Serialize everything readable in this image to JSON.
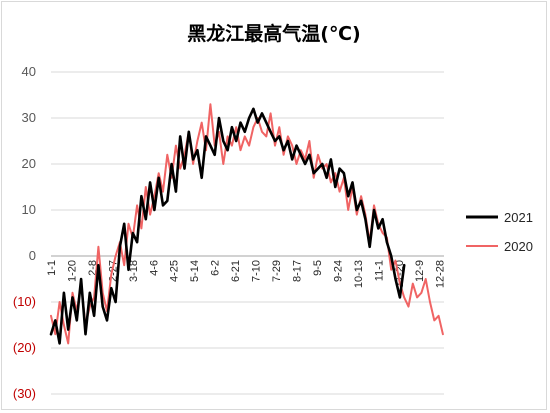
{
  "chart_data": {
    "type": "line",
    "title": "黑龙江最高气温(℃)",
    "xlabel": "",
    "ylabel": "",
    "ylim": [
      -30,
      40
    ],
    "yticks": [
      40,
      30,
      20,
      10,
      0,
      -10,
      -20,
      -30
    ],
    "ytick_labels": [
      "40",
      "30",
      "20",
      "10",
      "0",
      "(10)",
      "(20)",
      "(30)"
    ],
    "xtick_labels": [
      "1-1",
      "1-20",
      "2-8",
      "2-27",
      "3-18",
      "4-6",
      "4-25",
      "5-14",
      "6-2",
      "6-21",
      "7-10",
      "7-29",
      "8-17",
      "9-5",
      "9-24",
      "10-13",
      "11-1",
      "11-20",
      "12-9",
      "12-28"
    ],
    "xtick_days": [
      1,
      20,
      39,
      58,
      77,
      96,
      115,
      134,
      153,
      172,
      191,
      210,
      229,
      248,
      267,
      286,
      305,
      324,
      343,
      362
    ],
    "x_domain": [
      1,
      366
    ],
    "grid": true,
    "legend_position": "right",
    "colors": {
      "2021": "#000000",
      "2020": "#f06464",
      "grid": "#d9d9d9",
      "negative_tick": "#c00000"
    },
    "series": [
      {
        "name": "2021",
        "x": [
          1,
          5,
          9,
          13,
          17,
          21,
          25,
          29,
          33,
          37,
          41,
          45,
          49,
          53,
          57,
          61,
          65,
          69,
          73,
          77,
          81,
          85,
          89,
          93,
          97,
          101,
          105,
          109,
          113,
          117,
          121,
          125,
          129,
          133,
          137,
          141,
          145,
          149,
          153,
          157,
          161,
          165,
          169,
          173,
          177,
          181,
          185,
          189,
          193,
          197,
          201,
          205,
          209,
          213,
          217,
          221,
          225,
          229,
          233,
          237,
          241,
          245,
          249,
          253,
          257,
          261,
          265,
          269,
          273,
          277,
          281,
          285,
          289,
          293,
          297,
          301,
          305,
          309,
          313,
          317,
          321,
          325,
          329
        ],
        "y": [
          -17,
          -14,
          -19,
          -8,
          -16,
          -9,
          -14,
          -5,
          -17,
          -8,
          -13,
          -2,
          -11,
          -14,
          -7,
          -10,
          2,
          7,
          -3,
          5,
          3,
          13,
          8,
          16,
          10,
          17,
          11,
          12,
          20,
          14,
          26,
          19,
          27,
          21,
          23,
          17,
          26,
          24,
          22,
          30,
          25,
          23,
          28,
          25,
          29,
          27,
          30,
          32,
          29,
          31,
          29,
          27,
          25,
          26,
          23,
          25,
          21,
          24,
          22,
          20,
          22,
          18,
          19,
          20,
          17,
          21,
          15,
          19,
          18,
          13,
          16,
          10,
          12,
          8,
          2,
          10,
          6,
          8,
          3,
          0,
          -5,
          -9,
          -2
        ]
      },
      {
        "name": "2020",
        "x": [
          1,
          5,
          9,
          13,
          17,
          21,
          25,
          29,
          33,
          37,
          41,
          45,
          49,
          53,
          57,
          61,
          65,
          69,
          73,
          77,
          81,
          85,
          89,
          93,
          97,
          101,
          105,
          109,
          113,
          117,
          121,
          125,
          129,
          133,
          137,
          141,
          145,
          149,
          153,
          157,
          161,
          165,
          169,
          173,
          177,
          181,
          185,
          189,
          193,
          197,
          201,
          205,
          209,
          213,
          217,
          221,
          225,
          229,
          233,
          237,
          241,
          245,
          249,
          253,
          257,
          261,
          265,
          269,
          273,
          277,
          281,
          285,
          289,
          293,
          297,
          301,
          305,
          309,
          313,
          317,
          321,
          325,
          329,
          333,
          337,
          341,
          345,
          349,
          353,
          357,
          361,
          365
        ],
        "y": [
          -13,
          -17,
          -10,
          -15,
          -19,
          -8,
          -12,
          -6,
          -15,
          -11,
          -9,
          2,
          -8,
          -12,
          -4,
          0,
          3,
          -2,
          7,
          4,
          11,
          6,
          15,
          9,
          13,
          18,
          14,
          22,
          17,
          24,
          19,
          22,
          27,
          20,
          25,
          29,
          23,
          33,
          24,
          27,
          20,
          26,
          24,
          28,
          23,
          26,
          24,
          28,
          30,
          27,
          26,
          31,
          24,
          28,
          22,
          26,
          24,
          20,
          23,
          21,
          25,
          17,
          22,
          19,
          20,
          16,
          18,
          14,
          17,
          10,
          15,
          9,
          13,
          9,
          3,
          11,
          7,
          5,
          4,
          -3,
          -1,
          -6,
          -9,
          -11,
          -6,
          -9,
          -8,
          -5,
          -10,
          -14,
          -13,
          -17
        ]
      }
    ]
  }
}
